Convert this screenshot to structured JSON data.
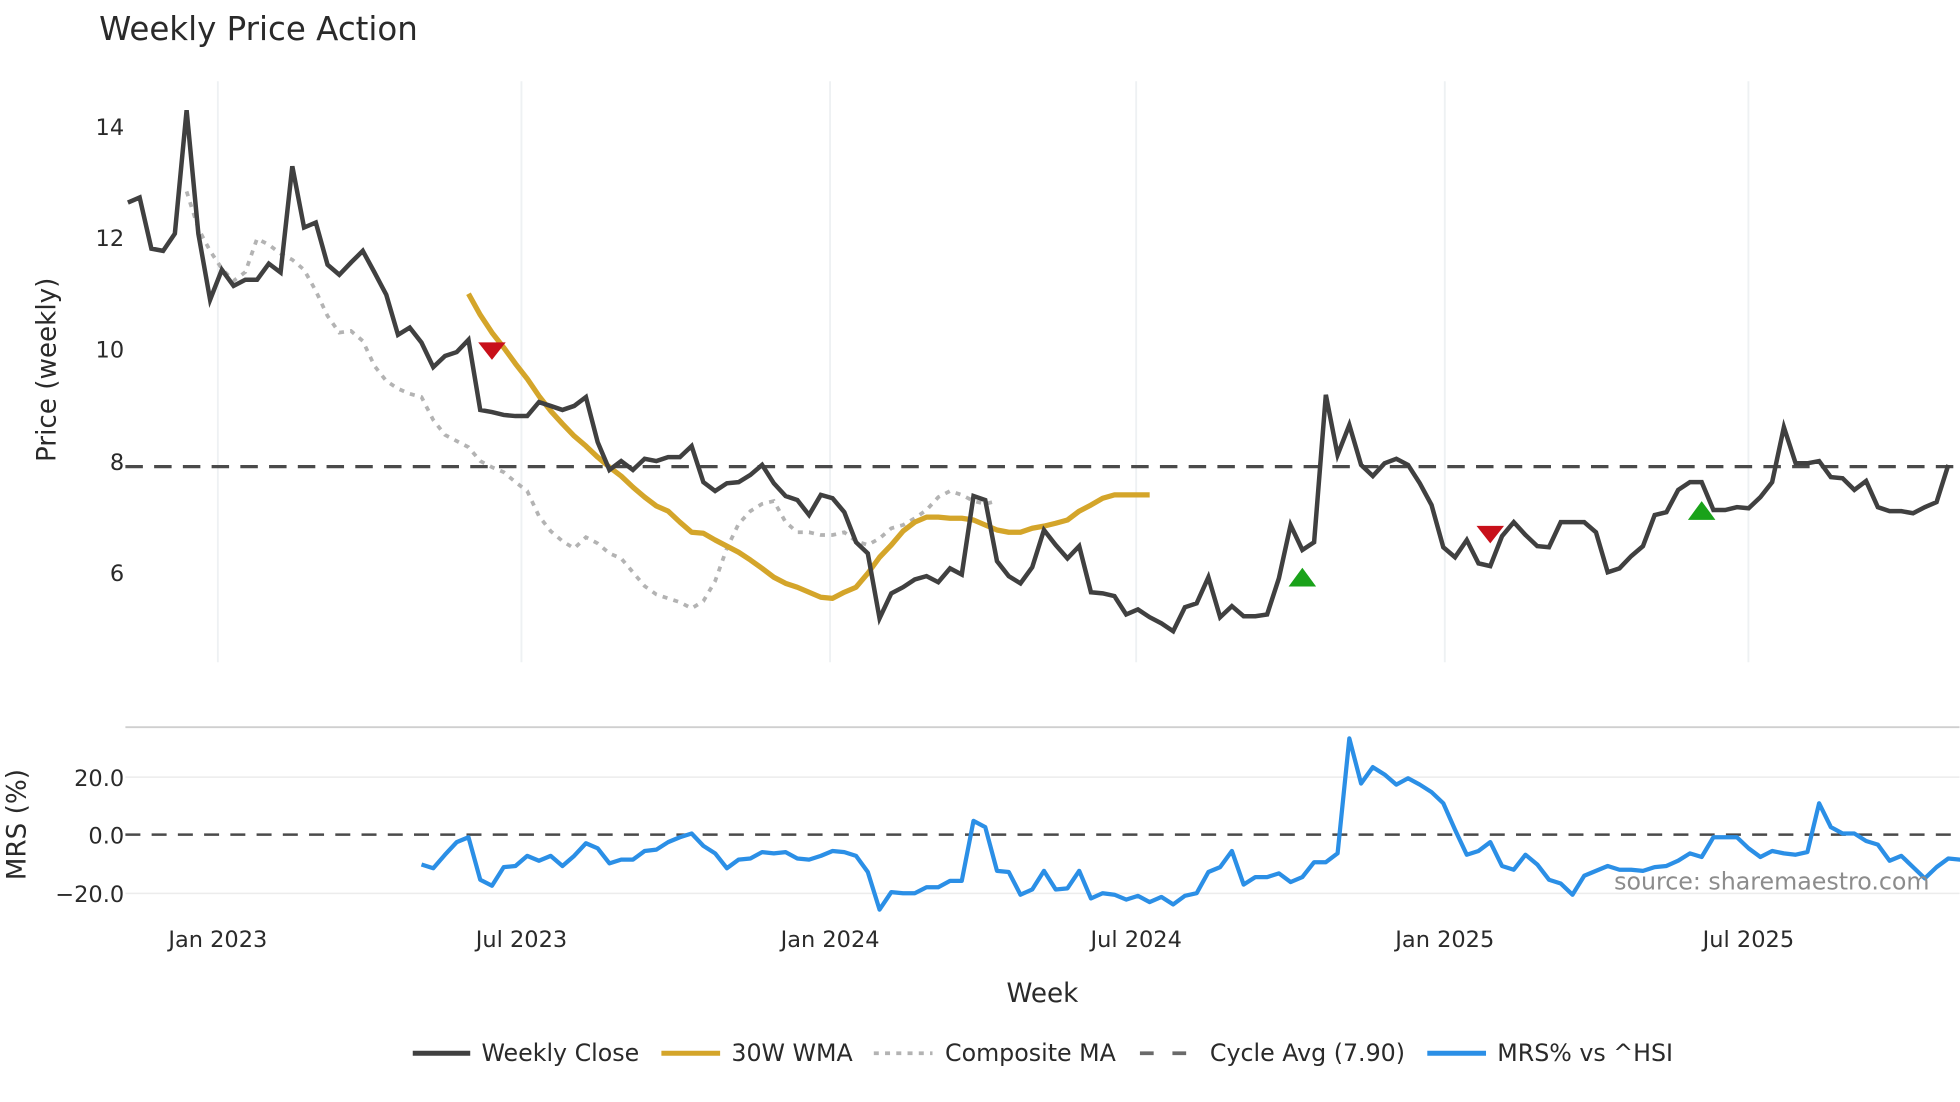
{
  "chart_data": [
    {
      "type": "line",
      "title": "Weekly Price Action",
      "xlabel": "Week",
      "ylabel": "Price (weekly)",
      "ylim": [
        4.6,
        14.8
      ],
      "yticks": [
        6,
        8,
        10,
        12,
        14
      ],
      "x_tick_labels": [
        "Jan 2023",
        "Jul 2023",
        "Jan 2024",
        "Jul 2024",
        "Jan 2025",
        "Jul 2025"
      ],
      "x_tick_index": [
        7.6,
        33.4,
        59.6,
        85.6,
        111.9,
        137.7
      ],
      "grid": "vertical",
      "colors": {
        "weekly_close": "#404040",
        "wma": "#d4a52a",
        "composite": "#b0b0b0",
        "cycle_avg": "#4a4a4a",
        "buy": "#1aa21a",
        "sell": "#c8101a"
      },
      "series": [
        {
          "name": "Weekly Close",
          "start_index": 0,
          "values": [
            12.65,
            12.74,
            11.82,
            11.78,
            12.09,
            14.31,
            12.09,
            10.9,
            11.44,
            11.15,
            11.26,
            11.26,
            11.55,
            11.39,
            13.3,
            12.2,
            12.29,
            11.53,
            11.35,
            11.57,
            11.78,
            11.39,
            10.99,
            10.27,
            10.4,
            10.13,
            9.69,
            9.89,
            9.96,
            10.18,
            8.92,
            8.88,
            8.83,
            8.81,
            8.81,
            9.06,
            8.99,
            8.92,
            8.99,
            9.15,
            8.34,
            7.84,
            8.0,
            7.84,
            8.04,
            8.0,
            8.07,
            8.07,
            8.27,
            7.62,
            7.46,
            7.6,
            7.62,
            7.75,
            7.93,
            7.6,
            7.37,
            7.3,
            7.03,
            7.39,
            7.33,
            7.08,
            6.54,
            6.34,
            5.17,
            5.62,
            5.73,
            5.87,
            5.93,
            5.82,
            6.07,
            5.96,
            7.37,
            7.3,
            6.2,
            5.93,
            5.8,
            6.09,
            6.76,
            6.49,
            6.25,
            6.47,
            5.64,
            5.62,
            5.57,
            5.24,
            5.33,
            5.19,
            5.08,
            4.94,
            5.37,
            5.44,
            5.91,
            5.19,
            5.39,
            5.21,
            5.21,
            5.24,
            5.89,
            6.85,
            6.4,
            6.54,
            9.19,
            8.11,
            8.65,
            7.93,
            7.73,
            7.96,
            8.04,
            7.93,
            7.6,
            7.21,
            6.45,
            6.27,
            6.58,
            6.16,
            6.11,
            6.65,
            6.9,
            6.67,
            6.47,
            6.45,
            6.9,
            6.9,
            6.9,
            6.72,
            6.0,
            6.07,
            6.29,
            6.47,
            7.03,
            7.08,
            7.48,
            7.62,
            7.62,
            7.12,
            7.12,
            7.17,
            7.15,
            7.35,
            7.62,
            8.61,
            7.96,
            7.96,
            8.0,
            7.71,
            7.69,
            7.48,
            7.64,
            7.17,
            7.1,
            7.1,
            7.06,
            7.17,
            7.26,
            7.93
          ]
        },
        {
          "name": "30W WMA",
          "start_index": 29,
          "values": [
            11.01,
            10.63,
            10.31,
            10.04,
            9.75,
            9.48,
            9.17,
            8.9,
            8.67,
            8.45,
            8.27,
            8.07,
            7.89,
            7.73,
            7.53,
            7.35,
            7.19,
            7.1,
            6.9,
            6.72,
            6.7,
            6.58,
            6.47,
            6.36,
            6.22,
            6.07,
            5.91,
            5.8,
            5.73,
            5.64,
            5.55,
            5.53,
            5.64,
            5.73,
            5.98,
            6.27,
            6.49,
            6.74,
            6.9,
            6.99,
            6.99,
            6.97,
            6.97,
            6.94,
            6.85,
            6.76,
            6.72,
            6.72,
            6.79,
            6.83,
            6.88,
            6.94,
            7.1,
            7.21,
            7.33,
            7.39,
            7.39,
            7.39,
            7.39
          ]
        },
        {
          "name": "Composite MA",
          "start_index": 5,
          "values": [
            12.85,
            12.18,
            11.78,
            11.46,
            11.24,
            11.4,
            12.0,
            11.89,
            11.73,
            11.62,
            11.44,
            11.06,
            10.61,
            10.31,
            10.34,
            10.16,
            9.71,
            9.44,
            9.3,
            9.21,
            9.15,
            8.74,
            8.47,
            8.36,
            8.25,
            8.0,
            7.89,
            7.8,
            7.62,
            7.46,
            7.01,
            6.74,
            6.56,
            6.43,
            6.63,
            6.52,
            6.34,
            6.25,
            6.0,
            5.75,
            5.6,
            5.53,
            5.46,
            5.35,
            5.48,
            5.84,
            6.43,
            6.87,
            7.1,
            7.23,
            7.28,
            6.9,
            6.72,
            6.72,
            6.67,
            6.67,
            6.72,
            6.56,
            6.49,
            6.61,
            6.79,
            6.85,
            6.97,
            7.12,
            7.35,
            7.46,
            7.39,
            7.28,
            7.23,
            7.28
          ]
        },
        {
          "name": "Cycle Avg (7.90)",
          "value": 7.9
        }
      ],
      "markers": [
        {
          "type": "sell",
          "index": 31,
          "value": 10.0
        },
        {
          "type": "buy",
          "index": 100,
          "value": 5.9
        },
        {
          "type": "sell",
          "index": 116,
          "value": 6.7
        },
        {
          "type": "buy",
          "index": 134,
          "value": 7.1
        }
      ]
    },
    {
      "type": "line",
      "title": "",
      "xlabel": "Week",
      "ylabel": "MRS (%)",
      "ylim": [
        -30,
        38
      ],
      "yticks": [
        -20.0,
        0.0,
        20.0
      ],
      "grid": "horizontal",
      "series": [
        {
          "name": "MRS% vs ^HSI",
          "start_index": 25,
          "values": [
            -10.4,
            -11.7,
            -7.0,
            -2.6,
            -0.9,
            -15.7,
            -17.8,
            -11.3,
            -10.9,
            -7.4,
            -9.1,
            -7.4,
            -10.9,
            -7.4,
            -3.0,
            -4.8,
            -10.0,
            -8.7,
            -8.7,
            -5.7,
            -5.2,
            -2.6,
            -0.9,
            0.4,
            -3.9,
            -6.5,
            -11.7,
            -8.7,
            -8.3,
            -6.1,
            -6.5,
            -6.1,
            -8.3,
            -8.7,
            -7.4,
            -5.7,
            -6.1,
            -7.4,
            -13.0,
            -26.1,
            -20.0,
            -20.4,
            -20.4,
            -18.3,
            -18.3,
            -16.1,
            -16.1,
            4.8,
            2.6,
            -12.6,
            -13.0,
            -20.9,
            -19.1,
            -12.6,
            -19.1,
            -18.7,
            -12.6,
            -22.2,
            -20.4,
            -20.9,
            -22.6,
            -21.3,
            -23.5,
            -21.7,
            -24.3,
            -21.3,
            -20.4,
            -13.0,
            -11.3,
            -5.7,
            -17.4,
            -14.8,
            -14.8,
            -13.5,
            -16.5,
            -14.8,
            -9.6,
            -9.6,
            -6.5,
            33.5,
            17.8,
            23.5,
            20.9,
            17.4,
            19.6,
            17.4,
            14.8,
            10.9,
            1.7,
            -7.0,
            -5.7,
            -2.6,
            -10.9,
            -12.2,
            -7.0,
            -10.4,
            -15.7,
            -17.0,
            -20.9,
            -14.3,
            -12.6,
            -10.9,
            -12.2,
            -12.2,
            -12.6,
            -11.3,
            -10.9,
            -9.1,
            -6.5,
            -7.8,
            -0.9,
            -0.9,
            -0.9,
            -4.8,
            -7.8,
            -5.7,
            -6.5,
            -7.0,
            -6.1,
            10.9,
            2.6,
            0.4,
            0.4,
            -2.2,
            -3.5,
            -9.1,
            -7.4,
            -11.3,
            -15.2,
            -11.3,
            -8.3,
            -8.7,
            -8.7,
            2.2
          ]
        },
        {
          "name": "Zero line",
          "value": 0.0
        }
      ],
      "colors": {
        "mrs": "#2b8fe6",
        "zero": "#4a4a4a"
      }
    }
  ],
  "header": {
    "title": "Weekly Price Action"
  },
  "axes": {
    "price_ylabel": "Price (weekly)",
    "mrs_ylabel": "MRS (%)",
    "xlabel": "Week",
    "price_ticks": [
      "14",
      "12",
      "10",
      "8",
      "6"
    ],
    "mrs_ticks": [
      "20.0",
      "0.0",
      "−20.0"
    ],
    "x_ticks": [
      "Jan 2023",
      "Jul 2023",
      "Jan 2024",
      "Jul 2024",
      "Jan 2025",
      "Jul 2025"
    ]
  },
  "legend": {
    "items": [
      {
        "label": "Weekly Close",
        "style": "solid",
        "color": "#404040"
      },
      {
        "label": "30W WMA",
        "style": "solid",
        "color": "#d4a52a"
      },
      {
        "label": "Composite MA",
        "style": "dotted",
        "color": "#b0b0b0"
      },
      {
        "label": "Cycle Avg (7.90)",
        "style": "dashed",
        "color": "#4a4a4a"
      },
      {
        "label": "MRS% vs ^HSI",
        "style": "solid",
        "color": "#2b8fe6"
      }
    ]
  },
  "watermark": {
    "text": "source: sharemaestro.com"
  }
}
